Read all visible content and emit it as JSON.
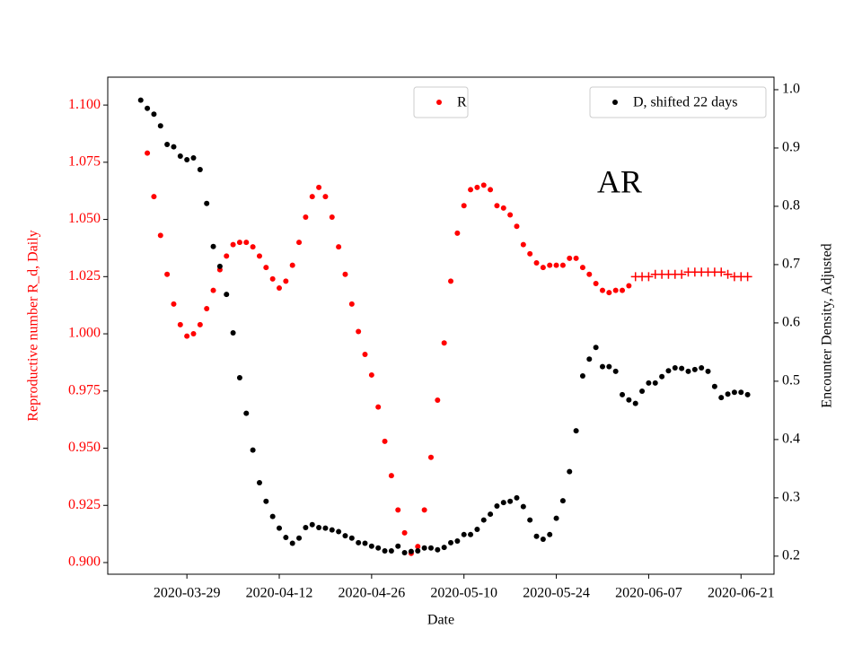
{
  "chart_data": {
    "type": "scatter",
    "xlabel": "Date",
    "ylabel": "Reproductive number R_d, Daily",
    "y2label": "Encounter Density, Adjusted",
    "annotation": "AR",
    "ycolor": "#ff0000",
    "xlim": [
      "2020-03-17",
      "2020-06-26"
    ],
    "xticks": [
      "2020-03-29",
      "2020-04-12",
      "2020-04-26",
      "2020-05-10",
      "2020-05-24",
      "2020-06-07",
      "2020-06-21"
    ],
    "ylim": [
      0.8949,
      1.1122
    ],
    "yticks": [
      {
        "value": 0.9,
        "label": "0.900"
      },
      {
        "value": 0.925,
        "label": "0.925"
      },
      {
        "value": 0.95,
        "label": "0.950"
      },
      {
        "value": 0.975,
        "label": "0.975"
      },
      {
        "value": 1.0,
        "label": "1.000"
      },
      {
        "value": 1.025,
        "label": "1.025"
      },
      {
        "value": 1.05,
        "label": "1.050"
      },
      {
        "value": 1.075,
        "label": "1.075"
      },
      {
        "value": 1.1,
        "label": "1.100"
      }
    ],
    "y2lim": [
      0.169,
      1.0215
    ],
    "y2ticks": [
      0.2,
      0.3,
      0.4,
      0.5,
      0.6,
      0.7,
      0.8,
      0.9,
      {
        "value": 1.0,
        "label": "1.0"
      }
    ],
    "series": [
      {
        "name": "R",
        "color": "#ff0000",
        "marker": "o",
        "axis": "y",
        "legend": "upper center",
        "x": [
          "2020-03-23",
          "2020-03-24",
          "2020-03-25",
          "2020-03-26",
          "2020-03-27",
          "2020-03-28",
          "2020-03-29",
          "2020-03-30",
          "2020-03-31",
          "2020-04-01",
          "2020-04-02",
          "2020-04-03",
          "2020-04-04",
          "2020-04-05",
          "2020-04-06",
          "2020-04-07",
          "2020-04-08",
          "2020-04-09",
          "2020-04-10",
          "2020-04-11",
          "2020-04-12",
          "2020-04-13",
          "2020-04-14",
          "2020-04-15",
          "2020-04-16",
          "2020-04-17",
          "2020-04-18",
          "2020-04-19",
          "2020-04-20",
          "2020-04-21",
          "2020-04-22",
          "2020-04-23",
          "2020-04-24",
          "2020-04-25",
          "2020-04-26",
          "2020-04-27",
          "2020-04-28",
          "2020-04-29",
          "2020-04-30",
          "2020-05-01",
          "2020-05-02",
          "2020-05-03",
          "2020-05-04",
          "2020-05-05",
          "2020-05-06",
          "2020-05-07",
          "2020-05-08",
          "2020-05-09",
          "2020-05-10",
          "2020-05-11",
          "2020-05-12",
          "2020-05-13",
          "2020-05-14",
          "2020-05-15",
          "2020-05-16",
          "2020-05-17",
          "2020-05-18",
          "2020-05-19",
          "2020-05-20",
          "2020-05-21",
          "2020-05-22",
          "2020-05-23",
          "2020-05-24",
          "2020-05-25",
          "2020-05-26",
          "2020-05-27",
          "2020-05-28",
          "2020-05-29",
          "2020-05-30",
          "2020-05-31",
          "2020-06-01",
          "2020-06-02",
          "2020-06-03",
          "2020-06-04"
        ],
        "values": [
          1.079,
          1.06,
          1.043,
          1.026,
          1.013,
          1.004,
          0.999,
          1.0,
          1.004,
          1.011,
          1.019,
          1.028,
          1.034,
          1.039,
          1.04,
          1.04,
          1.038,
          1.034,
          1.029,
          1.024,
          1.02,
          1.023,
          1.03,
          1.04,
          1.051,
          1.06,
          1.064,
          1.06,
          1.051,
          1.038,
          1.026,
          1.013,
          1.001,
          0.991,
          0.982,
          0.968,
          0.953,
          0.938,
          0.923,
          0.913,
          0.904,
          0.907,
          0.923,
          0.946,
          0.971,
          0.996,
          1.023,
          1.044,
          1.056,
          1.063,
          1.064,
          1.065,
          1.063,
          1.056,
          1.055,
          1.052,
          1.047,
          1.039,
          1.035,
          1.031,
          1.029,
          1.03,
          1.03,
          1.03,
          1.033,
          1.033,
          1.029,
          1.026,
          1.022,
          1.019,
          1.018,
          1.019,
          1.019,
          1.021
        ]
      },
      {
        "color": "#ff0000",
        "marker": "+",
        "axis": "y",
        "x": [
          "2020-06-05",
          "2020-06-06",
          "2020-06-07",
          "2020-06-08",
          "2020-06-09",
          "2020-06-10",
          "2020-06-11",
          "2020-06-12",
          "2020-06-13",
          "2020-06-14",
          "2020-06-15",
          "2020-06-16",
          "2020-06-17",
          "2020-06-18",
          "2020-06-19",
          "2020-06-20",
          "2020-06-21",
          "2020-06-22"
        ],
        "values": [
          1.025,
          1.025,
          1.025,
          1.026,
          1.026,
          1.026,
          1.026,
          1.026,
          1.027,
          1.027,
          1.027,
          1.027,
          1.027,
          1.027,
          1.026,
          1.025,
          1.025,
          1.025
        ]
      },
      {
        "name": "D, shifted 22 days",
        "color": "#000000",
        "marker": "o",
        "axis": "y2",
        "legend": "upper right",
        "x": [
          "2020-03-22",
          "2020-03-23",
          "2020-03-24",
          "2020-03-25",
          "2020-03-26",
          "2020-03-27",
          "2020-03-28",
          "2020-03-29",
          "2020-03-30",
          "2020-03-31",
          "2020-04-01",
          "2020-04-02",
          "2020-04-03",
          "2020-04-04",
          "2020-04-05",
          "2020-04-06",
          "2020-04-07",
          "2020-04-08",
          "2020-04-09",
          "2020-04-10",
          "2020-04-11",
          "2020-04-12",
          "2020-04-13",
          "2020-04-14",
          "2020-04-15",
          "2020-04-16",
          "2020-04-17",
          "2020-04-18",
          "2020-04-19",
          "2020-04-20",
          "2020-04-21",
          "2020-04-22",
          "2020-04-23",
          "2020-04-24",
          "2020-04-25",
          "2020-04-26",
          "2020-04-27",
          "2020-04-28",
          "2020-04-29",
          "2020-04-30",
          "2020-05-01",
          "2020-05-02",
          "2020-05-03",
          "2020-05-04",
          "2020-05-05",
          "2020-05-06",
          "2020-05-07",
          "2020-05-08",
          "2020-05-09",
          "2020-05-10",
          "2020-05-11",
          "2020-05-12",
          "2020-05-13",
          "2020-05-14",
          "2020-05-15",
          "2020-05-16",
          "2020-05-17",
          "2020-05-18",
          "2020-05-19",
          "2020-05-20",
          "2020-05-21",
          "2020-05-22",
          "2020-05-23",
          "2020-05-24",
          "2020-05-25",
          "2020-05-26",
          "2020-05-27",
          "2020-05-28",
          "2020-05-29",
          "2020-05-30",
          "2020-05-31",
          "2020-06-01",
          "2020-06-02",
          "2020-06-03",
          "2020-06-04",
          "2020-06-05",
          "2020-06-06",
          "2020-06-07",
          "2020-06-08",
          "2020-06-09",
          "2020-06-10",
          "2020-06-11",
          "2020-06-12",
          "2020-06-13",
          "2020-06-14",
          "2020-06-15",
          "2020-06-16",
          "2020-06-17",
          "2020-06-18",
          "2020-06-19",
          "2020-06-20",
          "2020-06-21",
          "2020-06-22"
        ],
        "values": [
          0.982,
          0.968,
          0.958,
          0.938,
          0.906,
          0.902,
          0.886,
          0.88,
          0.883,
          0.863,
          0.805,
          0.731,
          0.697,
          0.649,
          0.583,
          0.506,
          0.445,
          0.382,
          0.326,
          0.294,
          0.268,
          0.248,
          0.232,
          0.222,
          0.231,
          0.249,
          0.254,
          0.249,
          0.248,
          0.245,
          0.242,
          0.235,
          0.231,
          0.223,
          0.222,
          0.217,
          0.214,
          0.209,
          0.209,
          0.217,
          0.206,
          0.208,
          0.209,
          0.214,
          0.214,
          0.211,
          0.215,
          0.223,
          0.226,
          0.237,
          0.237,
          0.246,
          0.262,
          0.272,
          0.286,
          0.292,
          0.294,
          0.3,
          0.285,
          0.262,
          0.234,
          0.229,
          0.237,
          0.265,
          0.295,
          0.345,
          0.415,
          0.509,
          0.538,
          0.558,
          0.525,
          0.525,
          0.517,
          0.477,
          0.468,
          0.462,
          0.483,
          0.497,
          0.497,
          0.508,
          0.518,
          0.523,
          0.522,
          0.517,
          0.52,
          0.523,
          0.517,
          0.491,
          0.472,
          0.478,
          0.481,
          0.481,
          0.477
        ]
      }
    ]
  }
}
